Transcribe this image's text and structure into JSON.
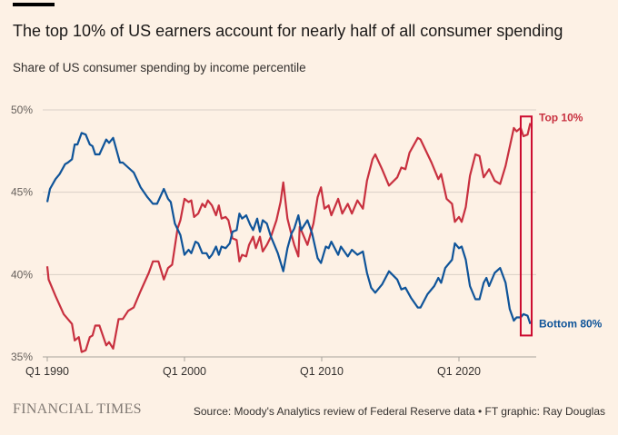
{
  "header": {
    "title": "The top 10% of US earners account for nearly half of all consumer spending",
    "subtitle": "Share of US consumer spending by income percentile"
  },
  "footer": {
    "logo": "FINANCIAL TIMES",
    "source": "Source: Moody's Analytics review of Federal Reserve data • FT graphic: Ray Douglas"
  },
  "chart_data": {
    "type": "line",
    "title": "The top 10% of US earners account for nearly half of all consumer spending",
    "subtitle": "Share of US consumer spending by income percentile",
    "xlabel": "",
    "ylabel": "",
    "xlim": [
      1990,
      2025.3
    ],
    "ylim": [
      35,
      50
    ],
    "grid": true,
    "x_ticks": [
      {
        "value": 1990,
        "label": "Q1 1990"
      },
      {
        "value": 2000,
        "label": "Q1 2000"
      },
      {
        "value": 2010,
        "label": "Q1 2010"
      },
      {
        "value": 2020,
        "label": "Q1 2020"
      }
    ],
    "y_ticks": [
      {
        "value": 35,
        "label": "35%"
      },
      {
        "value": 40,
        "label": "40%"
      },
      {
        "value": 45,
        "label": "45%"
      },
      {
        "value": 50,
        "label": "50%"
      }
    ],
    "highlight": {
      "x_range": [
        2024.5,
        2025.3
      ],
      "y_range": [
        36.3,
        49.6
      ],
      "color": "#cc0a2f"
    },
    "series": [
      {
        "name": "Top 10%",
        "color": "#c8303f",
        "x": [
          1990,
          1990.1,
          1990.6,
          1991.2,
          1991.8,
          1992,
          1992.3,
          1992.5,
          1992.8,
          1993.1,
          1993.3,
          1993.5,
          1993.8,
          1994.3,
          1994.5,
          1994.8,
          1995.2,
          1995.5,
          1995.9,
          1996.3,
          1996.8,
          1997.4,
          1997.7,
          1998.1,
          1998.5,
          1998.8,
          1999.1,
          1999.5,
          1999.7,
          2000,
          2000.3,
          2000.5,
          2000.7,
          2001,
          2001.3,
          2001.5,
          2001.7,
          2002,
          2002.3,
          2002.5,
          2002.7,
          2003,
          2003.2,
          2003.5,
          2003.8,
          2004,
          2004.2,
          2004.5,
          2004.7,
          2005,
          2005.2,
          2005.5,
          2005.7,
          2006,
          2006.3,
          2006.7,
          2007,
          2007.2,
          2007.5,
          2007.8,
          2008,
          2008.3,
          2008.4,
          2008.96,
          2009.4,
          2009.7,
          2009.95,
          2010.2,
          2010.5,
          2010.7,
          2011.2,
          2011.5,
          2011.9,
          2012.2,
          2012.6,
          2013,
          2013.3,
          2013.7,
          2013.9,
          2014.4,
          2014.9,
          2015.5,
          2015.8,
          2016.1,
          2016.4,
          2017,
          2017.2,
          2018,
          2018.5,
          2018.7,
          2019.1,
          2019.5,
          2019.7,
          2020,
          2020.2,
          2020.5,
          2020.8,
          2021.2,
          2021.5,
          2021.8,
          2022.2,
          2022.6,
          2023,
          2023.4,
          2024,
          2024.2,
          2024.5,
          2024.7,
          2025,
          2025.2
        ],
        "y": [
          40.5,
          39.7,
          38.7,
          37.6,
          37.0,
          36.0,
          36.2,
          35.3,
          35.4,
          36.2,
          36.3,
          36.9,
          36.9,
          35.7,
          35.9,
          35.5,
          37.3,
          37.3,
          37.8,
          38.0,
          39.0,
          40.1,
          40.8,
          40.8,
          39.7,
          40.4,
          40.6,
          42.8,
          43.3,
          44.6,
          44.4,
          44.5,
          43.5,
          43.7,
          44.3,
          44.1,
          44.5,
          44.2,
          43.6,
          44.2,
          43.4,
          43.5,
          43.3,
          42.2,
          42.1,
          40.8,
          41.2,
          41.1,
          41.8,
          42.3,
          41.6,
          42.3,
          41.4,
          41.8,
          42.3,
          43.3,
          44.4,
          45.6,
          43.4,
          42.4,
          41.8,
          41.1,
          42.9,
          41.8,
          43.1,
          44.7,
          45.3,
          44.0,
          44.2,
          43.6,
          44.6,
          43.7,
          44.3,
          43.7,
          44.5,
          44.0,
          45.7,
          47.0,
          47.3,
          46.4,
          45.4,
          45.9,
          46.5,
          46.4,
          47.4,
          48.3,
          48.2,
          46.8,
          45.8,
          46.1,
          44.6,
          44.3,
          43.2,
          43.5,
          43.2,
          44.1,
          46.0,
          47.3,
          47.2,
          45.9,
          46.4,
          45.7,
          45.5,
          46.6,
          48.9,
          48.7,
          48.9,
          48.4,
          48.5,
          49.2
        ]
      },
      {
        "name": "Bottom 80%",
        "color": "#0f5499",
        "x": [
          1990,
          1990.2,
          1990.6,
          1990.9,
          1991.3,
          1991.5,
          1991.8,
          1992,
          1992.2,
          1992.5,
          1992.8,
          1993.1,
          1993.3,
          1993.5,
          1993.8,
          1994.3,
          1994.5,
          1994.8,
          1995.3,
          1995.5,
          1995.9,
          1996.3,
          1996.8,
          1997.3,
          1997.7,
          1998,
          1998.5,
          1998.8,
          1999,
          1999.3,
          1999.7,
          2000,
          2000.3,
          2000.5,
          2000.8,
          2001,
          2001.3,
          2001.6,
          2001.8,
          2002,
          2002.3,
          2002.5,
          2002.7,
          2003,
          2003.3,
          2003.5,
          2003.8,
          2004,
          2004.2,
          2004.5,
          2004.8,
          2005,
          2005.3,
          2005.5,
          2005.7,
          2006,
          2006.3,
          2006.8,
          2007.2,
          2007.5,
          2007.8,
          2008,
          2008.3,
          2008.5,
          2008.96,
          2009.3,
          2009.7,
          2009.95,
          2010.3,
          2010.5,
          2010.7,
          2011.2,
          2011.4,
          2011.9,
          2012.2,
          2012.6,
          2013,
          2013.3,
          2013.6,
          2013.9,
          2014.4,
          2014.9,
          2015.5,
          2015.8,
          2016.1,
          2016.5,
          2017,
          2017.2,
          2017.7,
          2018.2,
          2018.5,
          2018.7,
          2019,
          2019.5,
          2019.7,
          2020,
          2020.2,
          2020.5,
          2020.8,
          2021.2,
          2021.5,
          2021.8,
          2022,
          2022.2,
          2022.6,
          2023,
          2023.4,
          2023.7,
          2024,
          2024.2,
          2024.5,
          2024.7,
          2025,
          2025.2
        ],
        "y": [
          44.4,
          45.2,
          45.8,
          46.1,
          46.7,
          46.8,
          47.0,
          47.9,
          47.9,
          48.6,
          48.5,
          47.9,
          47.8,
          47.3,
          47.3,
          48.2,
          48.0,
          48.3,
          46.8,
          46.8,
          46.5,
          46.2,
          45.3,
          44.7,
          44.3,
          44.3,
          45.2,
          44.6,
          44.4,
          43.1,
          42.4,
          41.2,
          41.5,
          41.3,
          42.0,
          41.9,
          41.3,
          41.3,
          41.0,
          41.2,
          41.7,
          41.2,
          41.7,
          41.6,
          41.9,
          42.6,
          42.7,
          43.7,
          43.4,
          43.6,
          43.0,
          42.7,
          43.4,
          42.6,
          43.3,
          43.1,
          42.3,
          41.3,
          40.2,
          41.6,
          42.5,
          42.8,
          43.6,
          42.7,
          43.3,
          42.5,
          41.0,
          40.7,
          41.7,
          41.6,
          42.0,
          41.2,
          41.7,
          41.1,
          41.5,
          41.2,
          41.4,
          40.1,
          39.2,
          38.9,
          39.4,
          40.2,
          39.7,
          39.1,
          39.2,
          38.6,
          38.0,
          38.0,
          38.8,
          39.3,
          39.8,
          39.5,
          40.4,
          40.9,
          41.9,
          41.6,
          41.7,
          40.9,
          39.3,
          38.5,
          38.5,
          39.5,
          39.8,
          39.3,
          40.1,
          40.4,
          39.5,
          37.9,
          37.2,
          37.4,
          37.4,
          37.6,
          37.5,
          37.0
        ]
      }
    ]
  }
}
